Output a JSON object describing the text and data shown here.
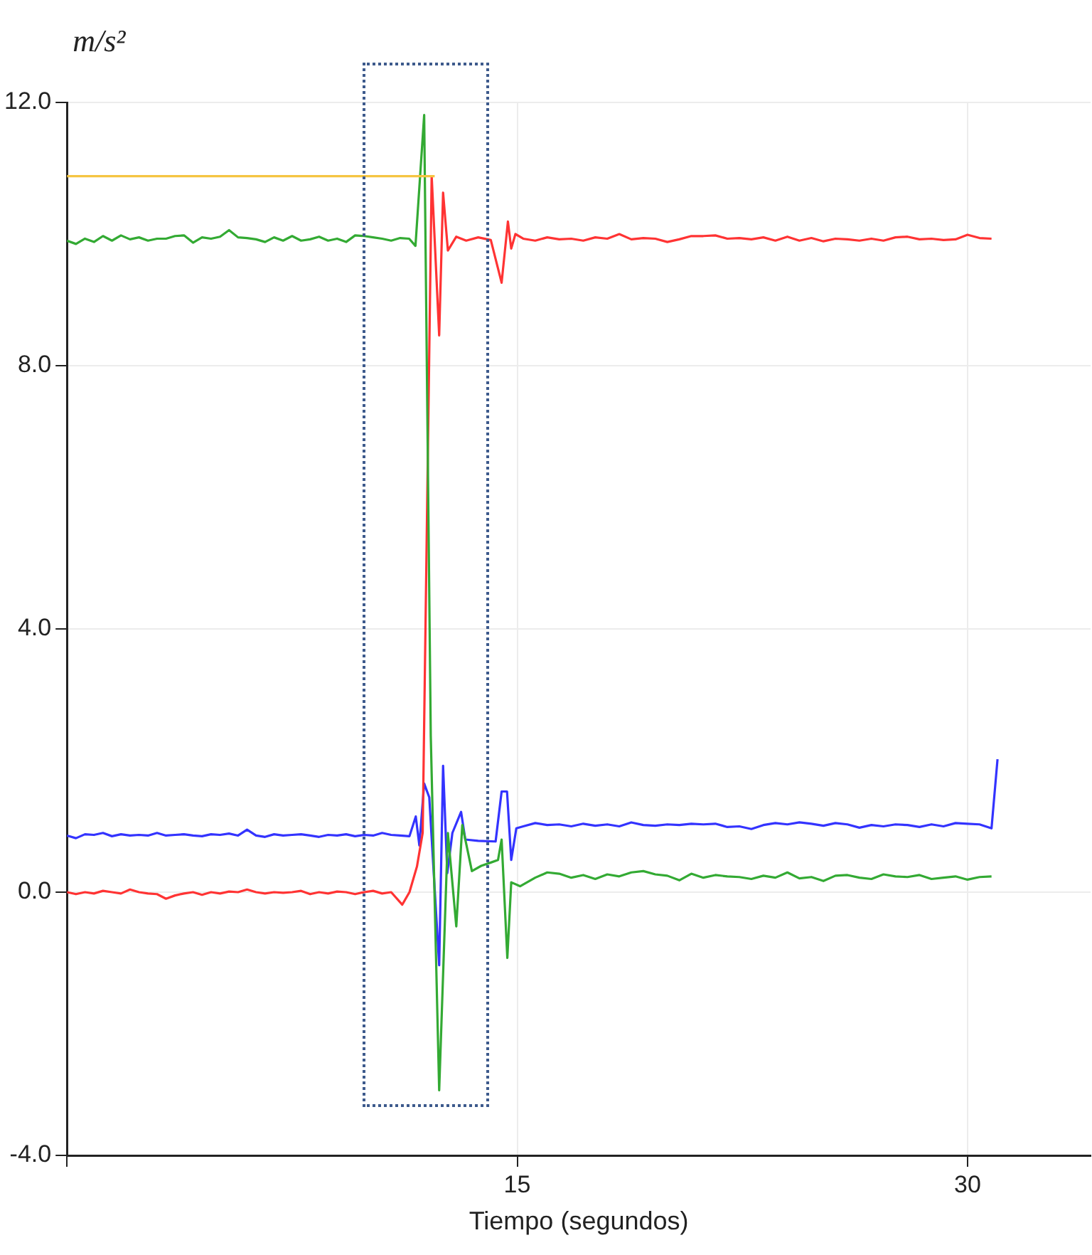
{
  "chart_data": {
    "type": "line",
    "ylabel": "m/s²",
    "xlabel": "Tiempo (segundos)",
    "xlim": [
      0,
      34.1
    ],
    "xticks": [
      {
        "value": 0,
        "label": null
      },
      15,
      30
    ],
    "ylim": [
      -4,
      12
    ],
    "yticks": [
      {
        "value": -4,
        "label": "-4.0"
      },
      {
        "value": 0,
        "label": "0.0"
      },
      {
        "value": 4,
        "label": "4.0"
      },
      {
        "value": 8,
        "label": "8.0"
      },
      {
        "value": 12,
        "label": "12.0"
      }
    ],
    "grid": true,
    "legend": false,
    "series": [
      {
        "color": "#f5c542",
        "x": [
          0,
          12.25
        ],
        "values": [
          10.88,
          10.88
        ]
      },
      {
        "color": "#33aa33",
        "x": [
          0,
          0.3,
          0.6,
          0.9,
          1.2,
          1.5,
          1.8,
          2.1,
          2.4,
          2.7,
          3,
          3.3,
          3.6,
          3.9,
          4.2,
          4.5,
          4.8,
          5.1,
          5.4,
          5.7,
          6,
          6.3,
          6.6,
          6.9,
          7.2,
          7.5,
          7.8,
          8.1,
          8.4,
          8.7,
          9,
          9.3,
          9.6,
          9.9,
          10.2,
          10.5,
          10.8,
          11.1,
          11.4,
          11.61,
          11.9,
          12.12,
          12.4,
          12.69,
          12.97,
          13.17,
          13.49,
          13.8,
          14.12,
          14.36,
          14.48,
          14.67,
          14.8,
          15.1,
          15.6,
          16,
          16.4,
          16.8,
          17.2,
          17.6,
          18,
          18.4,
          18.8,
          19.2,
          19.6,
          20,
          20.4,
          20.8,
          21.2,
          21.6,
          22,
          22.4,
          22.8,
          23.2,
          23.6,
          24,
          24.4,
          24.8,
          25.2,
          25.6,
          26,
          26.4,
          26.8,
          27.2,
          27.6,
          28,
          28.4,
          28.8,
          29.2,
          29.6,
          30,
          30.4,
          30.8
        ],
        "values": [
          9.9,
          9.85,
          9.93,
          9.88,
          9.97,
          9.9,
          9.98,
          9.92,
          9.95,
          9.9,
          9.93,
          9.93,
          9.97,
          9.98,
          9.87,
          9.95,
          9.93,
          9.96,
          10.06,
          9.95,
          9.94,
          9.92,
          9.88,
          9.95,
          9.9,
          9.97,
          9.9,
          9.92,
          9.96,
          9.9,
          9.93,
          9.88,
          9.98,
          9.97,
          9.95,
          9.93,
          9.9,
          9.94,
          9.93,
          9.82,
          11.81,
          2.37,
          -3.01,
          0.9,
          -0.52,
          1.02,
          0.32,
          0.4,
          0.45,
          0.49,
          0.8,
          -1.0,
          0.15,
          0.09,
          0.22,
          0.3,
          0.28,
          0.22,
          0.26,
          0.2,
          0.27,
          0.24,
          0.3,
          0.32,
          0.27,
          0.25,
          0.18,
          0.28,
          0.22,
          0.26,
          0.24,
          0.23,
          0.2,
          0.25,
          0.22,
          0.3,
          0.21,
          0.23,
          0.17,
          0.25,
          0.26,
          0.22,
          0.2,
          0.27,
          0.24,
          0.23,
          0.26,
          0.2,
          0.22,
          0.24,
          0.19,
          0.23,
          0.24
        ]
      },
      {
        "color": "#ff3333",
        "x": [
          0,
          0.3,
          0.6,
          0.9,
          1.2,
          1.5,
          1.8,
          2.1,
          2.4,
          2.7,
          3,
          3.3,
          3.6,
          3.9,
          4.2,
          4.5,
          4.8,
          5.1,
          5.4,
          5.7,
          6,
          6.3,
          6.6,
          6.9,
          7.2,
          7.5,
          7.8,
          8.1,
          8.4,
          8.7,
          9,
          9.3,
          9.6,
          9.9,
          10.2,
          10.5,
          10.8,
          11.17,
          11.41,
          11.66,
          11.85,
          12.15,
          12.4,
          12.53,
          12.69,
          12.97,
          13.3,
          13.7,
          14.12,
          14.48,
          14.69,
          14.8,
          14.94,
          15.2,
          15.6,
          16,
          16.4,
          16.8,
          17.2,
          17.6,
          18,
          18.4,
          18.8,
          19.2,
          19.6,
          20,
          20.4,
          20.8,
          21.2,
          21.6,
          22,
          22.4,
          22.8,
          23.2,
          23.6,
          24,
          24.4,
          24.8,
          25.2,
          25.6,
          26,
          26.4,
          26.8,
          27.2,
          27.6,
          28,
          28.4,
          28.8,
          29.2,
          29.6,
          30,
          30.4,
          30.8
        ],
        "values": [
          0.0,
          -0.03,
          0.0,
          -0.02,
          0.02,
          0.0,
          -0.02,
          0.04,
          0.0,
          -0.02,
          -0.03,
          -0.1,
          -0.05,
          -0.02,
          0.0,
          -0.04,
          0.0,
          -0.02,
          0.01,
          0.0,
          0.04,
          0.0,
          -0.02,
          0.0,
          -0.01,
          0.0,
          0.02,
          -0.03,
          0.0,
          -0.02,
          0.01,
          0.0,
          -0.03,
          0.0,
          0.02,
          -0.02,
          0.0,
          -0.19,
          0.0,
          0.39,
          0.9,
          10.88,
          8.46,
          10.63,
          9.75,
          9.96,
          9.9,
          9.95,
          9.91,
          9.26,
          10.19,
          9.78,
          10.0,
          9.93,
          9.9,
          9.95,
          9.92,
          9.93,
          9.9,
          9.95,
          9.93,
          10.0,
          9.92,
          9.94,
          9.93,
          9.88,
          9.92,
          9.97,
          9.97,
          9.98,
          9.93,
          9.94,
          9.92,
          9.95,
          9.9,
          9.96,
          9.9,
          9.94,
          9.89,
          9.93,
          9.92,
          9.9,
          9.93,
          9.9,
          9.95,
          9.96,
          9.92,
          9.93,
          9.91,
          9.92,
          9.99,
          9.94,
          9.93
        ]
      },
      {
        "color": "#3333ff",
        "x": [
          0,
          0.3,
          0.6,
          0.9,
          1.2,
          1.5,
          1.8,
          2.1,
          2.4,
          2.7,
          3,
          3.3,
          3.6,
          3.9,
          4.2,
          4.5,
          4.8,
          5.1,
          5.4,
          5.7,
          6,
          6.3,
          6.6,
          6.9,
          7.2,
          7.5,
          7.8,
          8.1,
          8.4,
          8.7,
          9,
          9.3,
          9.6,
          9.9,
          10.2,
          10.5,
          10.8,
          11.1,
          11.41,
          11.62,
          11.74,
          11.9,
          12.07,
          12.4,
          12.53,
          12.67,
          12.84,
          13.13,
          13.27,
          13.7,
          14.28,
          14.48,
          14.66,
          14.8,
          14.97,
          15.2,
          15.6,
          16,
          16.4,
          16.8,
          17.2,
          17.6,
          18,
          18.4,
          18.8,
          19.2,
          19.6,
          20,
          20.4,
          20.8,
          21.2,
          21.6,
          22,
          22.4,
          22.8,
          23.2,
          23.6,
          24,
          24.4,
          24.8,
          25.2,
          25.6,
          26,
          26.4,
          26.8,
          27.2,
          27.6,
          28,
          28.4,
          28.8,
          29.2,
          29.6,
          30,
          30.4,
          30.8,
          31.0
        ],
        "values": [
          0.86,
          0.82,
          0.88,
          0.87,
          0.9,
          0.85,
          0.88,
          0.86,
          0.87,
          0.86,
          0.9,
          0.86,
          0.87,
          0.88,
          0.86,
          0.85,
          0.88,
          0.87,
          0.89,
          0.86,
          0.95,
          0.86,
          0.84,
          0.88,
          0.86,
          0.87,
          0.88,
          0.86,
          0.84,
          0.87,
          0.86,
          0.88,
          0.85,
          0.87,
          0.86,
          0.9,
          0.87,
          0.86,
          0.85,
          1.15,
          0.71,
          1.65,
          1.44,
          -1.11,
          1.92,
          0.29,
          0.9,
          1.22,
          0.8,
          0.78,
          0.77,
          1.53,
          1.53,
          0.49,
          0.97,
          1.0,
          1.05,
          1.02,
          1.03,
          1.0,
          1.04,
          1.01,
          1.03,
          1.0,
          1.06,
          1.02,
          1.01,
          1.03,
          1.02,
          1.04,
          1.03,
          1.04,
          0.99,
          1.0,
          0.96,
          1.02,
          1.05,
          1.03,
          1.06,
          1.04,
          1.01,
          1.05,
          1.03,
          0.98,
          1.02,
          1.0,
          1.03,
          1.02,
          0.99,
          1.03,
          1.0,
          1.05,
          1.04,
          1.03,
          0.97,
          2.02
        ]
      }
    ]
  }
}
